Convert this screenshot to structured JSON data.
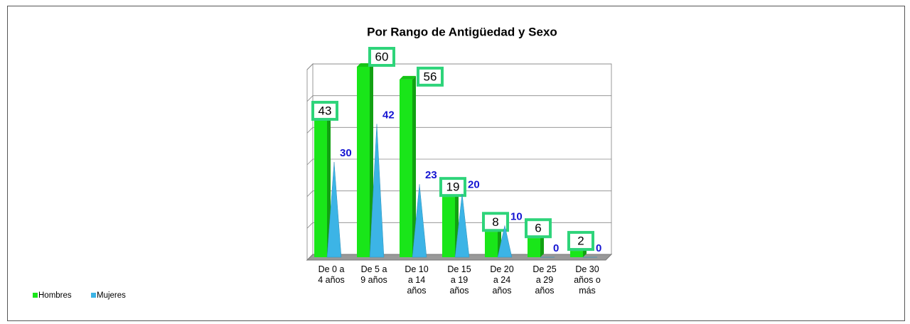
{
  "chart_data": {
    "type": "bar",
    "title": "Por Rango de Antigüedad y Sexo",
    "categories": [
      "De 0 a\n4 años",
      "De 5 a\n9 años",
      "De 10\na 14\naños",
      "De 15\na 19\naños",
      "De 20\na 24\naños",
      "De 25\na 29\naños",
      "De 30\naños o\nmás"
    ],
    "series": [
      {
        "name": "Hombres",
        "color": "#19e619",
        "values": [
          43,
          60,
          56,
          19,
          8,
          6,
          2
        ]
      },
      {
        "name": "Mujeres",
        "color": "#3cb4e6",
        "values": [
          30,
          42,
          23,
          20,
          10,
          0,
          0
        ]
      }
    ],
    "ylim": [
      0,
      60
    ],
    "yticks": [
      0,
      10,
      20,
      30,
      40,
      50,
      60
    ],
    "grid": true
  }
}
